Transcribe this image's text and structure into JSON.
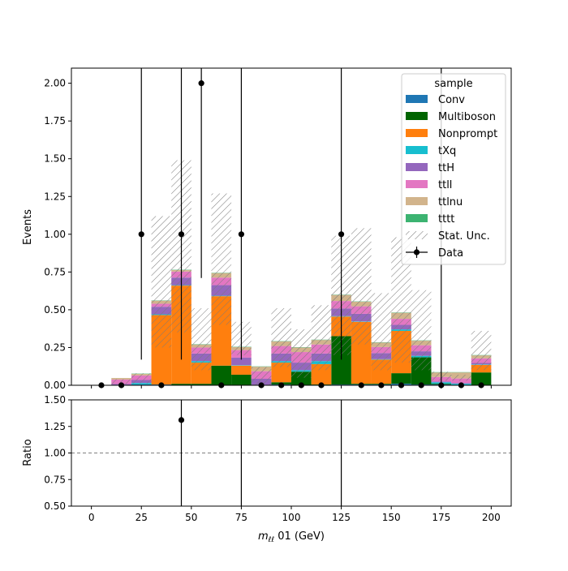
{
  "chart_data": {
    "type": "bar",
    "xlabel": "m_ll 01 (GeV)",
    "xlabel_main": "m",
    "xlabel_sub": "ℓℓ",
    "xlabel_rest": " 01 (GeV)",
    "ylabel": "Events",
    "ratio_ylabel": "Ratio",
    "xlim": [
      -10,
      210
    ],
    "ylim": [
      0,
      2.1
    ],
    "ratio_ylim": [
      0.5,
      1.5
    ],
    "bin_edges": [
      0,
      10,
      20,
      30,
      40,
      50,
      60,
      70,
      80,
      90,
      100,
      110,
      120,
      130,
      140,
      150,
      160,
      170,
      180,
      190,
      200
    ],
    "x_ticks": [
      0,
      25,
      50,
      75,
      100,
      125,
      150,
      175,
      200
    ],
    "x_tick_labels": [
      "0",
      "25",
      "50",
      "75",
      "100",
      "125",
      "150",
      "175",
      "200"
    ],
    "y_ticks": [
      0,
      0.25,
      0.5,
      0.75,
      1.0,
      1.25,
      1.5,
      1.75,
      2.0
    ],
    "y_tick_labels": [
      "0.00",
      "0.25",
      "0.50",
      "0.75",
      "1.00",
      "1.25",
      "1.50",
      "1.75",
      "2.00"
    ],
    "ratio_ticks": [
      0.5,
      0.75,
      1.0,
      1.25,
      1.5
    ],
    "ratio_tick_labels": [
      "0.50",
      "0.75",
      "1.00",
      "1.25",
      "1.50"
    ],
    "legend": {
      "title": "sample",
      "location": "top-right"
    },
    "series": [
      {
        "name": "Conv",
        "color": "#1f77b4",
        "values": [
          0,
          0,
          0.005,
          0.005,
          0,
          0,
          0,
          0,
          0,
          0.005,
          0,
          0,
          0.005,
          0.005,
          0.005,
          0.01,
          0.005,
          0.005,
          0,
          0
        ]
      },
      {
        "name": "Multiboson",
        "color": "#006400",
        "values": [
          0,
          0,
          0,
          0,
          0.01,
          0.01,
          0.13,
          0.07,
          0,
          0.015,
          0.09,
          0.005,
          0.32,
          0.005,
          0.005,
          0.07,
          0.18,
          0.005,
          0,
          0.085
        ]
      },
      {
        "name": "Nonprompt",
        "color": "#ff7f0e",
        "values": [
          0,
          0,
          0,
          0.46,
          0.65,
          0.14,
          0.46,
          0.06,
          0,
          0.13,
          0,
          0.135,
          0.13,
          0.41,
          0.16,
          0.28,
          0,
          0,
          0,
          0.05
        ]
      },
      {
        "name": "tXq",
        "color": "#17becf",
        "values": [
          0,
          0.003,
          0.01,
          0.005,
          0.003,
          0.01,
          0.003,
          0.003,
          0.003,
          0.01,
          0.01,
          0.02,
          0.003,
          0.003,
          0.003,
          0.01,
          0.01,
          0.01,
          0.01,
          0.003
        ]
      },
      {
        "name": "ttH",
        "color": "#9467bd",
        "values": [
          0,
          0.005,
          0.02,
          0.05,
          0.05,
          0.05,
          0.07,
          0.05,
          0.04,
          0.05,
          0.05,
          0.05,
          0.05,
          0.05,
          0.04,
          0.03,
          0.03,
          0.005,
          0.005,
          0.01
        ]
      },
      {
        "name": "ttll",
        "color": "#e377c2",
        "values": [
          0,
          0.03,
          0.03,
          0.02,
          0.04,
          0.04,
          0.05,
          0.05,
          0.05,
          0.05,
          0.07,
          0.06,
          0.05,
          0.05,
          0.04,
          0.04,
          0.04,
          0.03,
          0.03,
          0.03
        ]
      },
      {
        "name": "ttlnu",
        "color": "#d2b48c",
        "values": [
          0,
          0.01,
          0.01,
          0.02,
          0.01,
          0.02,
          0.03,
          0.02,
          0.03,
          0.03,
          0.03,
          0.03,
          0.04,
          0.03,
          0.03,
          0.04,
          0.03,
          0.03,
          0.04,
          0.02
        ]
      },
      {
        "name": "tttt",
        "color": "#3cb371",
        "values": [
          0,
          0,
          0.002,
          0.002,
          0.002,
          0.002,
          0.002,
          0.002,
          0.002,
          0.002,
          0.002,
          0.002,
          0.002,
          0.002,
          0.002,
          0.002,
          0.002,
          0.002,
          0.002,
          0.002
        ]
      }
    ],
    "stat_unc": {
      "name": "Stat. Unc.",
      "low": [
        0,
        0.005,
        0.01,
        0.25,
        0.35,
        0.1,
        0.4,
        0.2,
        0,
        0.12,
        0.05,
        0.1,
        0.2,
        0.27,
        0.1,
        0.15,
        0.1,
        0.03,
        0.03,
        0.1
      ],
      "high": [
        0,
        0.04,
        0.08,
        1.12,
        1.49,
        0.51,
        1.27,
        0.42,
        0.12,
        0.51,
        0.37,
        0.53,
        0.99,
        1.04,
        0.61,
        0.98,
        0.63,
        0.09,
        0.07,
        0.36
      ]
    },
    "data": {
      "name": "Data",
      "x": [
        5,
        15,
        25,
        35,
        45,
        55,
        65,
        75,
        85,
        95,
        105,
        115,
        125,
        135,
        145,
        155,
        165,
        175,
        185,
        195
      ],
      "y": [
        0,
        0,
        1,
        0,
        1,
        2,
        0,
        1,
        0,
        0,
        0,
        0,
        1,
        0,
        0,
        0,
        0,
        0,
        0,
        0
      ],
      "err_low": [
        0,
        0,
        0.83,
        0,
        0.83,
        1.29,
        0,
        0.83,
        0,
        0,
        0,
        0,
        0.83,
        0,
        0,
        0,
        0,
        0,
        0,
        0
      ],
      "err_high": [
        0,
        0,
        2.3,
        0,
        2.3,
        2.64,
        0,
        2.3,
        0,
        0,
        0,
        0,
        2.3,
        0,
        0,
        0,
        0,
        2.3,
        0,
        0
      ]
    },
    "ratio": {
      "x": [
        45
      ],
      "y": [
        1.31
      ],
      "vlines_x": [
        45,
        75,
        125
      ],
      "reference": 1.0
    }
  }
}
